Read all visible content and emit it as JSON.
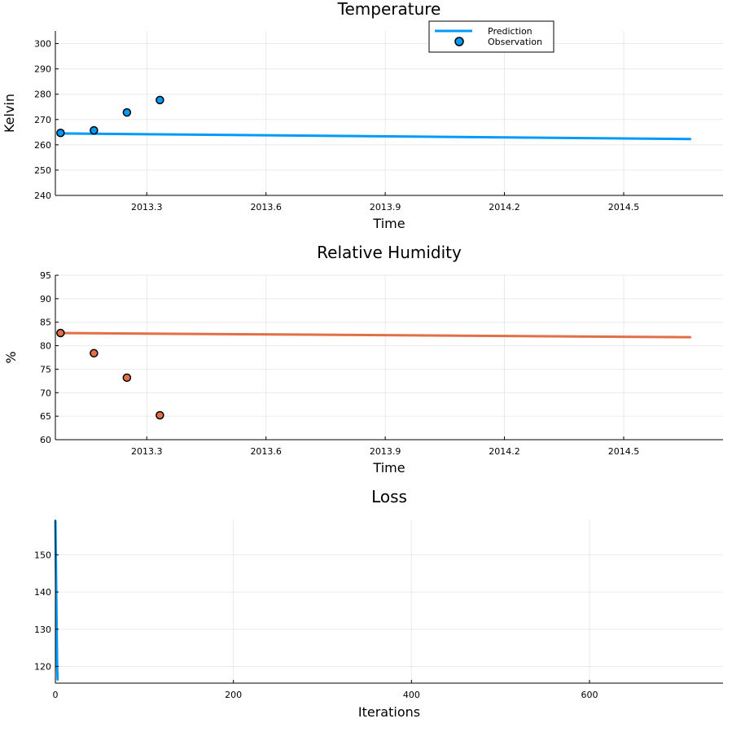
{
  "colors": {
    "series1": "#009af9",
    "series2": "#e26f46"
  },
  "chart_data": [
    {
      "type": "line+scatter",
      "title": "Temperature",
      "xlabel": "Time",
      "ylabel": "Kelvin",
      "xlim": [
        2013.07,
        2014.75
      ],
      "ylim": [
        240,
        305
      ],
      "xticks": [
        2013.3,
        2013.6,
        2013.9,
        2014.2,
        2014.5
      ],
      "xtick_labels": [
        "2013.3",
        "2013.6",
        "2013.9",
        "2014.2",
        "2014.5"
      ],
      "yticks": [
        240,
        250,
        260,
        270,
        280,
        290,
        300
      ],
      "ytick_labels": [
        "240",
        "250",
        "260",
        "270",
        "280",
        "290",
        "300"
      ],
      "grid": true,
      "legend": {
        "placement": "top-right",
        "entries": [
          {
            "label": "Prediction",
            "kind": "line"
          },
          {
            "label": "Observation",
            "kind": "marker"
          }
        ]
      },
      "series": [
        {
          "name": "Prediction",
          "kind": "line",
          "color": "#009af9",
          "x": [
            2013.083,
            2014.667
          ],
          "y": [
            264.5,
            262.3
          ]
        },
        {
          "name": "Observation",
          "kind": "scatter",
          "color": "#009af9",
          "x": [
            2013.083,
            2013.167,
            2013.25,
            2013.333
          ],
          "y": [
            264.7,
            265.7,
            272.8,
            277.7
          ]
        }
      ]
    },
    {
      "type": "line+scatter",
      "title": "Relative Humidity",
      "xlabel": "Time",
      "ylabel": "%",
      "xlim": [
        2013.07,
        2014.75
      ],
      "ylim": [
        60,
        95
      ],
      "xticks": [
        2013.3,
        2013.6,
        2013.9,
        2014.2,
        2014.5
      ],
      "xtick_labels": [
        "2013.3",
        "2013.6",
        "2013.9",
        "2014.2",
        "2014.5"
      ],
      "yticks": [
        60,
        65,
        70,
        75,
        80,
        85,
        90,
        95
      ],
      "ytick_labels": [
        "60",
        "65",
        "70",
        "75",
        "80",
        "85",
        "90",
        "95"
      ],
      "grid": true,
      "series": [
        {
          "kind": "line",
          "color": "#e26f46",
          "x": [
            2013.083,
            2014.667
          ],
          "y": [
            82.7,
            81.8
          ]
        },
        {
          "kind": "scatter",
          "color": "#e26f46",
          "x": [
            2013.083,
            2013.167,
            2013.25,
            2013.333
          ],
          "y": [
            82.7,
            78.4,
            73.2,
            65.2
          ]
        }
      ]
    },
    {
      "type": "line",
      "title": "Loss",
      "xlabel": "Iterations",
      "ylabel": "",
      "xlim": [
        0,
        750
      ],
      "ylim": [
        115.5,
        159.5
      ],
      "xticks": [
        0,
        200,
        400,
        600
      ],
      "xtick_labels": [
        "0",
        "200",
        "400",
        "600"
      ],
      "yticks": [
        120,
        130,
        140,
        150
      ],
      "ytick_labels": [
        "120",
        "130",
        "140",
        "150"
      ],
      "grid": true,
      "series": [
        {
          "kind": "line",
          "color": "#009af9",
          "x": [
            0,
            0.5,
            1,
            1.5,
            2,
            2.5
          ],
          "y": [
            159,
            150,
            140,
            130,
            120,
            116.5
          ]
        }
      ]
    }
  ]
}
